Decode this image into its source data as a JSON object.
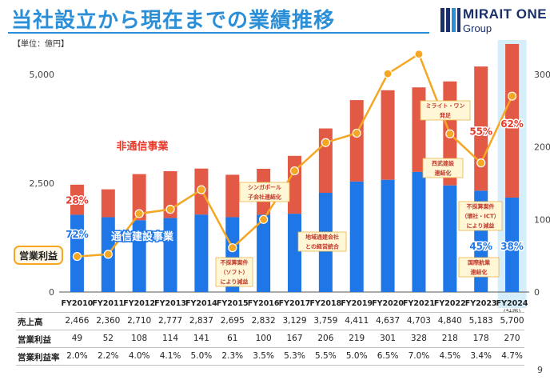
{
  "header": {
    "title": "当社設立から現在までの業績推移",
    "unit_note": "【単位：億円】",
    "page_number": "9"
  },
  "logo": {
    "wordmark": "MIRAIT ONE",
    "sub": "Group",
    "colors": [
      "#1a2f6b",
      "#2b8fd8"
    ]
  },
  "colors": {
    "title": "#2b8fd8",
    "telecom_bar": "#1f76e6",
    "non_telecom_bar": "#e25a45",
    "profit_line": "#f5a623",
    "plan_highlight": "#d6eefc"
  },
  "chart_data": {
    "type": "bar",
    "stacked": true,
    "categories": [
      "FY2010",
      "FY2011",
      "FY2012",
      "FY2013",
      "FY2014",
      "FY2015",
      "FY2016",
      "FY2017",
      "FY2018",
      "FY2019",
      "FY2020",
      "FY2021",
      "FY2022",
      "FY2023",
      "FY2024"
    ],
    "plan_sub": "（計画）",
    "series": [
      {
        "name": "通信建設事業",
        "axis": "left",
        "values": [
          1776,
          1720,
          1650,
          1700,
          1780,
          1720,
          1780,
          1800,
          2280,
          2540,
          2580,
          2760,
          2450,
          2330,
          2170
        ]
      },
      {
        "name": "非通信事業",
        "axis": "left",
        "values": [
          690,
          640,
          1060,
          1077,
          1057,
          975,
          1052,
          1329,
          1479,
          1871,
          2057,
          1943,
          2390,
          2853,
          3530
        ]
      },
      {
        "name": "営業利益",
        "type": "line",
        "axis": "right",
        "values": [
          49,
          52,
          108,
          114,
          141,
          61,
          100,
          167,
          206,
          219,
          301,
          328,
          218,
          178,
          270
        ]
      }
    ],
    "yleft": {
      "ticks": [
        "0",
        "2,500",
        "5,000"
      ],
      "ylim": [
        0,
        5700
      ]
    },
    "yright": {
      "ticks": [
        "0",
        "100",
        "200",
        "300"
      ],
      "ylim": [
        0,
        330
      ]
    },
    "pct_labels": {
      "FY2010": {
        "telecom": "72%",
        "non_telecom": "28%"
      },
      "FY2023": {
        "telecom": "45%",
        "non_telecom": "55%"
      },
      "FY2024": {
        "telecom": "38%",
        "non_telecom": "62%"
      }
    },
    "legend_labels": {
      "non_telecom": "非通信事業",
      "telecom": "通信建設事業",
      "profit": "営業利益"
    },
    "annotations": [
      {
        "at": "FY2015",
        "text": [
          "不採算案件",
          "（ソフト）",
          "により減益"
        ]
      },
      {
        "at": "FY2016",
        "text": [
          "シンガポール",
          "子会社連結化"
        ]
      },
      {
        "at": "FY2017",
        "text": [
          "地域通建会社",
          "との経営統合"
        ]
      },
      {
        "at": "FY2021",
        "text": [
          "ミライト・ワン",
          "発足"
        ]
      },
      {
        "at": "FY2022",
        "text": [
          "西武建設",
          "連結化"
        ]
      },
      {
        "at": "FY2023",
        "text": [
          "不採算案件",
          "（環社・ICT）",
          "により減益"
        ]
      },
      {
        "at": "FY2023",
        "text": [
          "国際航業",
          "連結化"
        ]
      }
    ],
    "table": {
      "rows": [
        {
          "label": "売上高",
          "values": [
            "2,466",
            "2,360",
            "2,710",
            "2,777",
            "2,837",
            "2,695",
            "2,832",
            "3,129",
            "3,759",
            "4,411",
            "4,637",
            "4,703",
            "4,840",
            "5,183",
            "5,700"
          ]
        },
        {
          "label": "営業利益",
          "values": [
            "49",
            "52",
            "108",
            "114",
            "141",
            "61",
            "100",
            "167",
            "206",
            "219",
            "301",
            "328",
            "218",
            "178",
            "270"
          ]
        },
        {
          "label": "営業利益率",
          "values": [
            "2.0%",
            "2.2%",
            "4.0%",
            "4.1%",
            "5.0%",
            "2.3%",
            "3.5%",
            "5.3%",
            "5.5%",
            "5.0%",
            "6.5%",
            "7.0%",
            "4.5%",
            "3.4%",
            "4.7%"
          ]
        }
      ]
    }
  }
}
